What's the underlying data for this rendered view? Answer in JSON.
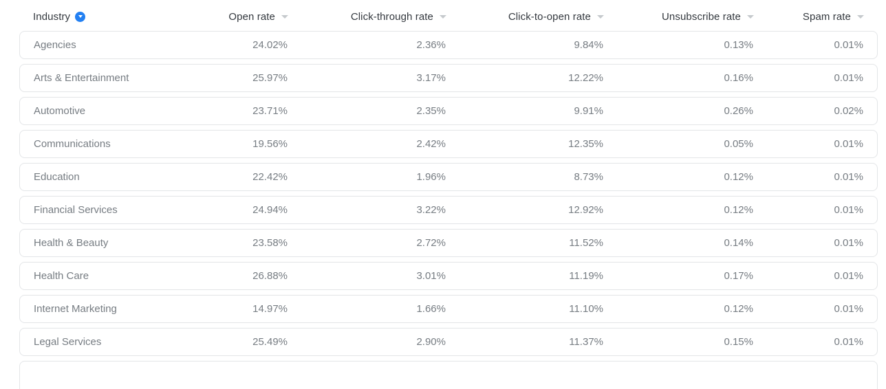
{
  "table": {
    "columns": {
      "industry": "Industry",
      "open_rate": "Open rate",
      "click_through_rate": "Click-through rate",
      "click_to_open_rate": "Click-to-open rate",
      "unsubscribe_rate": "Unsubscribe rate",
      "spam_rate": "Spam rate"
    },
    "sorted_column": "Industry",
    "rows": [
      [
        "Agencies",
        "24.02%",
        "2.36%",
        "9.84%",
        "0.13%",
        "0.01%"
      ],
      [
        "Arts & Entertainment",
        "25.97%",
        "3.17%",
        "12.22%",
        "0.16%",
        "0.01%"
      ],
      [
        "Automotive",
        "23.71%",
        "2.35%",
        "9.91%",
        "0.26%",
        "0.02%"
      ],
      [
        "Communications",
        "19.56%",
        "2.42%",
        "12.35%",
        "0.05%",
        "0.01%"
      ],
      [
        "Education",
        "22.42%",
        "1.96%",
        "8.73%",
        "0.12%",
        "0.01%"
      ],
      [
        "Financial Services",
        "24.94%",
        "3.22%",
        "12.92%",
        "0.12%",
        "0.01%"
      ],
      [
        "Health & Beauty",
        "23.58%",
        "2.72%",
        "11.52%",
        "0.14%",
        "0.01%"
      ],
      [
        "Health Care",
        "26.88%",
        "3.01%",
        "11.19%",
        "0.17%",
        "0.01%"
      ],
      [
        "Internet Marketing",
        "14.97%",
        "1.66%",
        "11.10%",
        "0.12%",
        "0.01%"
      ],
      [
        "Legal Services",
        "25.49%",
        "2.90%",
        "11.37%",
        "0.15%",
        "0.01%"
      ]
    ],
    "icons": {
      "active_sort": "chevron-down-circle-icon",
      "sortable": "chevron-down-icon"
    },
    "colors": {
      "accent_blue": "#2380f2",
      "header_text": "#33383e",
      "row_text": "#767c82",
      "card_border": "#e3e5e7",
      "sort_caret": "#c6cacd",
      "background": "#ffffff"
    }
  }
}
